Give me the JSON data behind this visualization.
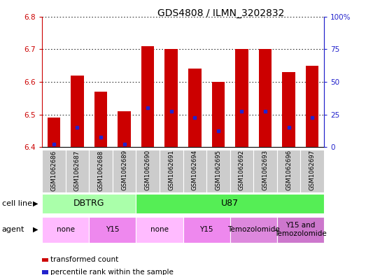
{
  "title": "GDS4808 / ILMN_3202832",
  "samples": [
    "GSM1062686",
    "GSM1062687",
    "GSM1062688",
    "GSM1062689",
    "GSM1062690",
    "GSM1062691",
    "GSM1062694",
    "GSM1062695",
    "GSM1062692",
    "GSM1062693",
    "GSM1062696",
    "GSM1062697"
  ],
  "red_values": [
    6.49,
    6.62,
    6.57,
    6.51,
    6.71,
    6.7,
    6.64,
    6.6,
    6.7,
    6.7,
    6.63,
    6.65
  ],
  "blue_values": [
    6.41,
    6.46,
    6.43,
    6.41,
    6.52,
    6.51,
    6.49,
    6.45,
    6.51,
    6.51,
    6.46,
    6.49
  ],
  "ylim_left": [
    6.4,
    6.8
  ],
  "ylim_right": [
    0,
    100
  ],
  "yticks_left": [
    6.4,
    6.5,
    6.6,
    6.7,
    6.8
  ],
  "yticks_right": [
    0,
    25,
    50,
    75,
    100
  ],
  "bar_color": "#cc0000",
  "dot_color": "#2222cc",
  "base_value": 6.4,
  "bar_width": 0.55,
  "cell_line_groups": [
    {
      "text": "DBTRG",
      "start": 0,
      "end": 3,
      "color": "#aaffaa"
    },
    {
      "text": "U87",
      "start": 4,
      "end": 11,
      "color": "#55ee55"
    }
  ],
  "agent_groups": [
    {
      "text": "none",
      "start": 0,
      "end": 1,
      "color": "#ffbbff"
    },
    {
      "text": "Y15",
      "start": 2,
      "end": 3,
      "color": "#ee88ee"
    },
    {
      "text": "none",
      "start": 4,
      "end": 5,
      "color": "#ffbbff"
    },
    {
      "text": "Y15",
      "start": 6,
      "end": 7,
      "color": "#ee88ee"
    },
    {
      "text": "Temozolomide",
      "start": 8,
      "end": 9,
      "color": "#dd88dd"
    },
    {
      "text": "Y15 and\nTemozolomide",
      "start": 10,
      "end": 11,
      "color": "#cc77cc"
    }
  ],
  "cell_line_label": "cell line",
  "agent_label": "agent",
  "legend_items": [
    {
      "color": "#cc0000",
      "label": "transformed count",
      "marker": "square"
    },
    {
      "color": "#2222cc",
      "label": "percentile rank within the sample",
      "marker": "square"
    }
  ],
  "left_axis_color": "#cc0000",
  "right_axis_color": "#2222cc",
  "bg_color": "#ffffff",
  "sample_bg_color": "#cccccc",
  "sample_sep_color": "#ffffff"
}
